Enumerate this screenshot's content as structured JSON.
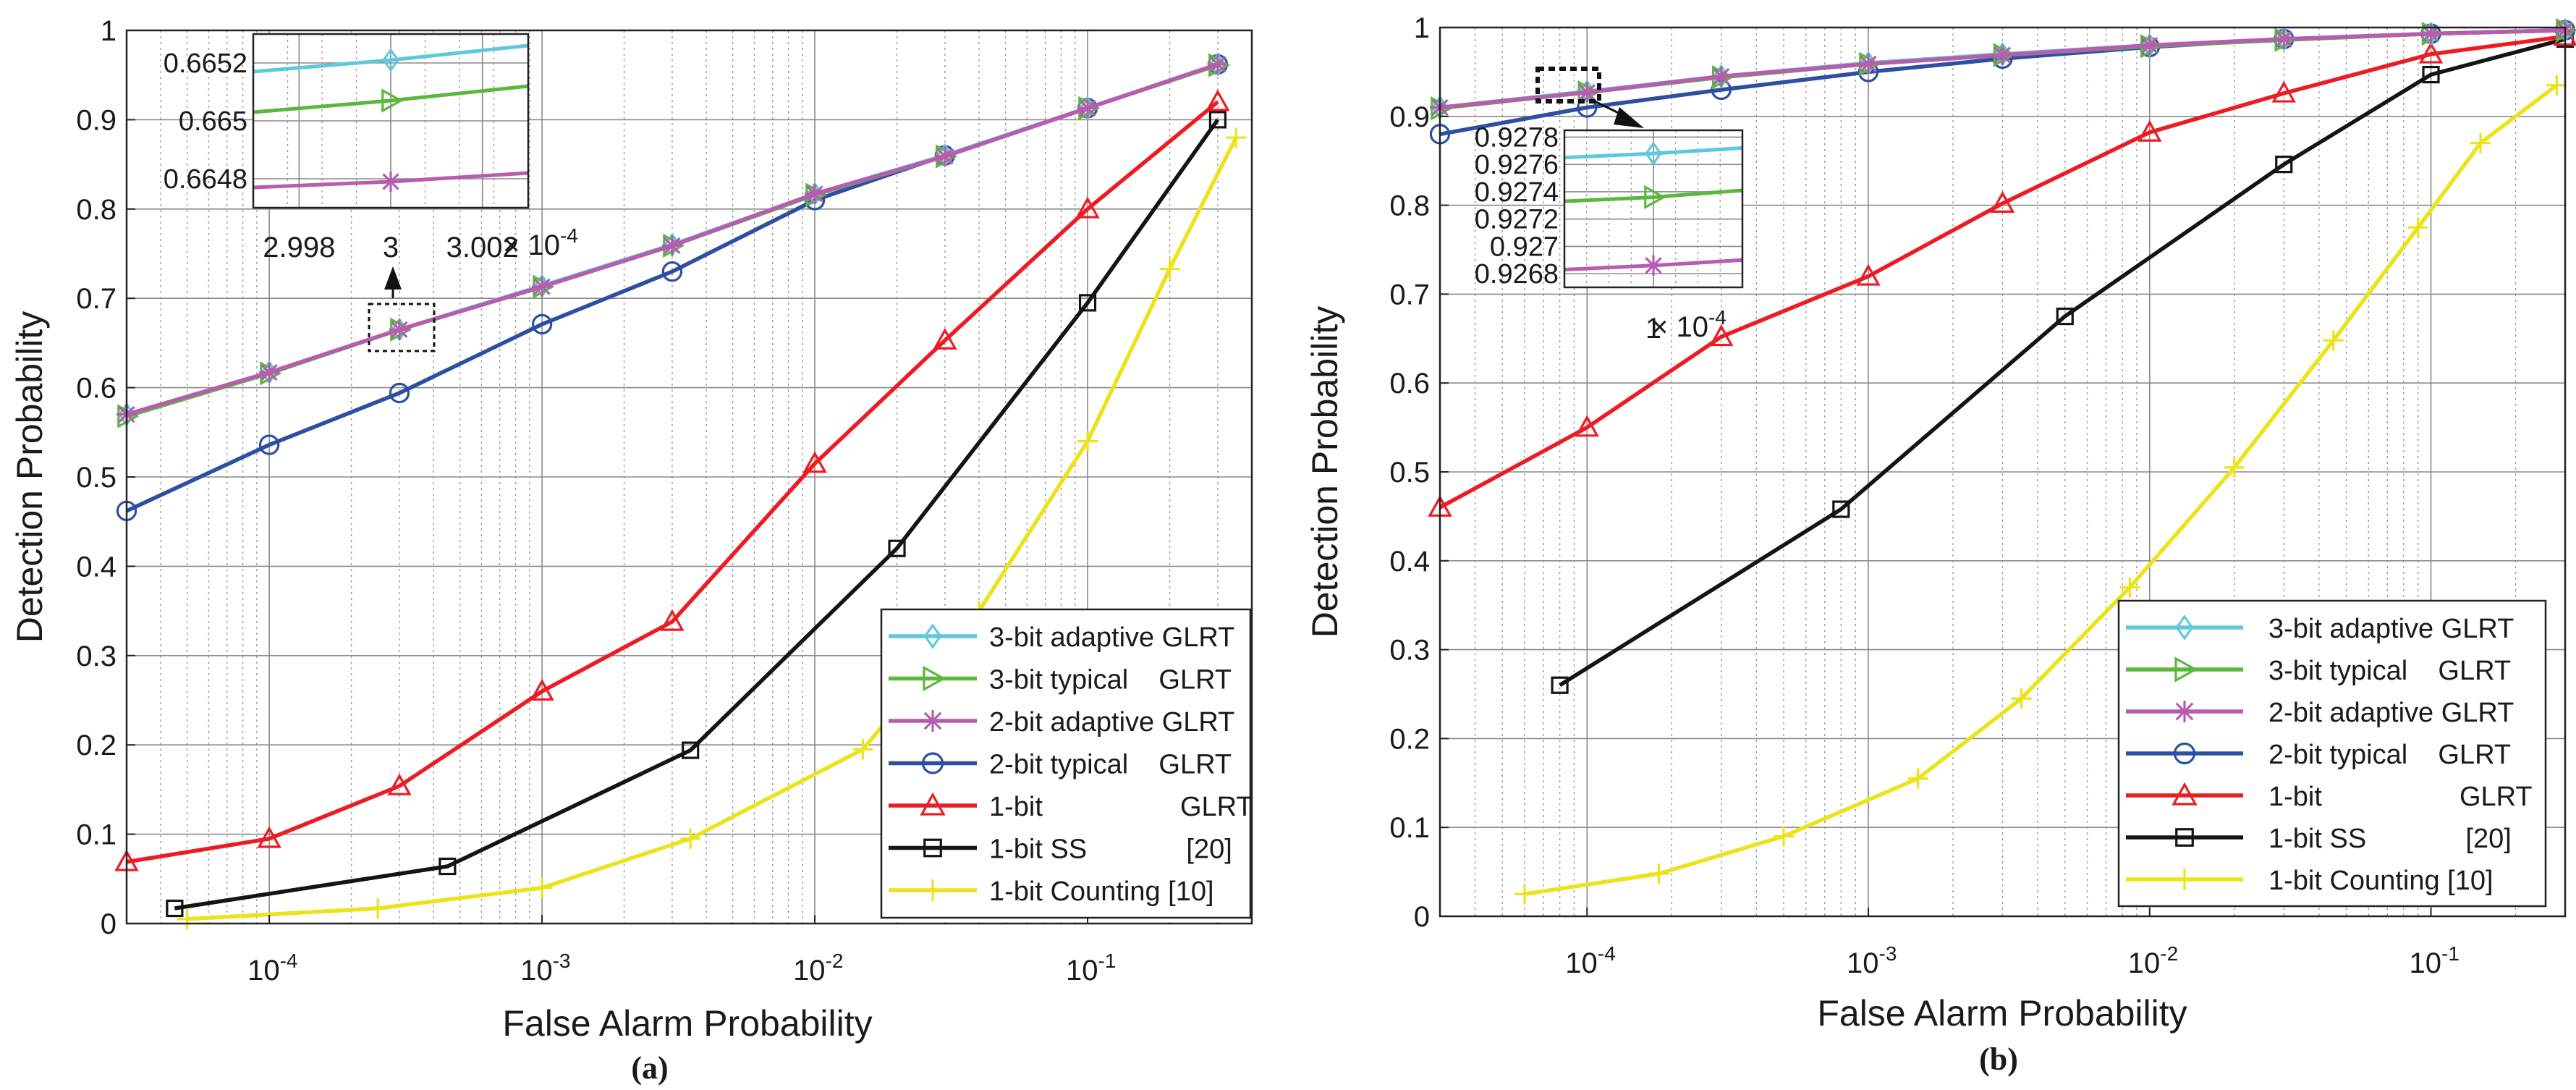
{
  "figure": {
    "series_styles": [
      {
        "color": "#5fc8dc",
        "marker": "diamond"
      },
      {
        "color": "#5ab83c",
        "marker": "triangle-right"
      },
      {
        "color": "#b85cb0",
        "marker": "asterisk"
      },
      {
        "color": "#2d4fa3",
        "marker": "circle"
      },
      {
        "color": "#ec1c24",
        "marker": "triangle-up"
      },
      {
        "color": "#141414",
        "marker": "square"
      },
      {
        "color": "#ebe31c",
        "marker": "plus"
      }
    ]
  },
  "chart_data": [
    {
      "type": "line",
      "panel_label": "(a)",
      "xlabel": "False Alarm Probability",
      "ylabel": "Detection Probability",
      "xscale": "log",
      "xlim": [
        3e-05,
        0.4
      ],
      "ylim": [
        0,
        1
      ],
      "yticks": [
        "0",
        "0.1",
        "0.2",
        "0.3",
        "0.4",
        "0.5",
        "0.6",
        "0.7",
        "0.8",
        "0.9",
        "1"
      ],
      "xticks": [
        {
          "base": "10",
          "exp": "-4"
        },
        {
          "base": "10",
          "exp": "-3"
        },
        {
          "base": "10",
          "exp": "-2"
        },
        {
          "base": "10",
          "exp": "-1"
        }
      ],
      "grid": true,
      "legend": {
        "position": "bottom-right",
        "entries": [
          {
            "label": "3-bit adaptive GLRT"
          },
          {
            "label": "3-bit typical    GLRT"
          },
          {
            "label": "2-bit adaptive GLRT"
          },
          {
            "label": "2-bit typical    GLRT"
          },
          {
            "label": "1-bit                  GLRT"
          },
          {
            "label": "1-bit SS             [20]"
          },
          {
            "label": "1-bit Counting [10]"
          }
        ]
      },
      "series": [
        {
          "name": "3-bit adaptive GLRT",
          "x": [
            3e-05,
            0.0001,
            0.0003,
            0.001,
            0.003,
            0.01,
            0.03,
            0.1,
            0.3
          ],
          "y": [
            0.57,
            0.617,
            0.665,
            0.714,
            0.76,
            0.817,
            0.86,
            0.913,
            0.962
          ]
        },
        {
          "name": "3-bit typical GLRT",
          "x": [
            3e-05,
            0.0001,
            0.0003,
            0.001,
            0.003,
            0.01,
            0.03,
            0.1,
            0.3
          ],
          "y": [
            0.568,
            0.616,
            0.665,
            0.713,
            0.759,
            0.816,
            0.859,
            0.913,
            0.961
          ]
        },
        {
          "name": "2-bit adaptive GLRT",
          "x": [
            3e-05,
            0.0001,
            0.0003,
            0.001,
            0.003,
            0.01,
            0.03,
            0.1,
            0.3
          ],
          "y": [
            0.57,
            0.617,
            0.665,
            0.713,
            0.759,
            0.817,
            0.859,
            0.913,
            0.962
          ]
        },
        {
          "name": "2-bit typical GLRT",
          "x": [
            3e-05,
            0.0001,
            0.0003,
            0.001,
            0.003,
            0.01,
            0.03,
            0.1,
            0.3
          ],
          "y": [
            0.462,
            0.536,
            0.594,
            0.671,
            0.73,
            0.81,
            0.86,
            0.913,
            0.962
          ]
        },
        {
          "name": "1-bit GLRT",
          "x": [
            3e-05,
            0.0001,
            0.0003,
            0.001,
            0.003,
            0.01,
            0.03,
            0.1,
            0.3
          ],
          "y": [
            0.069,
            0.095,
            0.154,
            0.26,
            0.338,
            0.515,
            0.653,
            0.8,
            0.92
          ]
        },
        {
          "name": "1-bit SS [20]",
          "x": [
            4.5e-05,
            0.00045,
            0.0035,
            0.02,
            0.1,
            0.3
          ],
          "y": [
            0.017,
            0.064,
            0.194,
            0.42,
            0.695,
            0.9
          ]
        },
        {
          "name": "1-bit Counting [10]",
          "x": [
            5e-05,
            0.00025,
            0.001,
            0.0035,
            0.015,
            0.04,
            0.1,
            0.2,
            0.35
          ],
          "y": [
            0.005,
            0.017,
            0.04,
            0.095,
            0.195,
            0.35,
            0.54,
            0.733,
            0.88
          ]
        }
      ],
      "inset": {
        "xlim": [
          2.997,
          3.003
        ],
        "ylim": [
          0.6647,
          0.6653
        ],
        "xticks": [
          "2.998",
          "3",
          "3.002"
        ],
        "yticks": [
          "0.6648",
          "0.665",
          "0.6652"
        ],
        "x_multiplier": "× 10",
        "x_multiplier_exp": "-4",
        "series": [
          {
            "name": "3-bit adaptive GLRT",
            "x": [
              2.997,
              3.0,
              3.003
            ],
            "y": [
              0.66517,
              0.66521,
              0.66526
            ]
          },
          {
            "name": "3-bit typical GLRT",
            "x": [
              2.997,
              3.0,
              3.003
            ],
            "y": [
              0.66503,
              0.66507,
              0.66512
            ]
          },
          {
            "name": "2-bit adaptive GLRT",
            "x": [
              2.997,
              3.0,
              3.003
            ],
            "y": [
              0.66477,
              0.66479,
              0.66482
            ]
          }
        ]
      }
    },
    {
      "type": "line",
      "panel_label": "(b)",
      "xlabel": "False Alarm Probability",
      "ylabel": "Detection Probability",
      "xscale": "log",
      "xlim": [
        3e-05,
        0.3
      ],
      "ylim": [
        0,
        1
      ],
      "yticks": [
        "0",
        "0.1",
        "0.2",
        "0.3",
        "0.4",
        "0.5",
        "0.6",
        "0.7",
        "0.8",
        "0.9",
        "1"
      ],
      "xticks": [
        {
          "base": "10",
          "exp": "-4"
        },
        {
          "base": "10",
          "exp": "-3"
        },
        {
          "base": "10",
          "exp": "-2"
        },
        {
          "base": "10",
          "exp": "-1"
        }
      ],
      "grid": true,
      "legend": {
        "position": "bottom-right",
        "entries": [
          {
            "label": "3-bit adaptive GLRT"
          },
          {
            "label": "3-bit typical    GLRT"
          },
          {
            "label": "2-bit adaptive GLRT"
          },
          {
            "label": "2-bit typical    GLRT"
          },
          {
            "label": "1-bit                  GLRT"
          },
          {
            "label": "1-bit SS             [20]"
          },
          {
            "label": "1-bit Counting [10]"
          }
        ]
      },
      "series": [
        {
          "name": "3-bit adaptive GLRT",
          "x": [
            3e-05,
            0.0001,
            0.0003,
            0.001,
            0.003,
            0.01,
            0.03,
            0.1,
            0.3
          ],
          "y": [
            0.91,
            0.928,
            0.945,
            0.96,
            0.97,
            0.98,
            0.987,
            0.993,
            0.997
          ]
        },
        {
          "name": "3-bit typical GLRT",
          "x": [
            3e-05,
            0.0001,
            0.0003,
            0.001,
            0.003,
            0.01,
            0.03,
            0.1,
            0.3
          ],
          "y": [
            0.909,
            0.927,
            0.944,
            0.959,
            0.969,
            0.979,
            0.986,
            0.993,
            0.997
          ]
        },
        {
          "name": "2-bit adaptive GLRT",
          "x": [
            3e-05,
            0.0001,
            0.0003,
            0.001,
            0.003,
            0.01,
            0.03,
            0.1,
            0.3
          ],
          "y": [
            0.91,
            0.927,
            0.945,
            0.959,
            0.969,
            0.98,
            0.987,
            0.993,
            0.997
          ]
        },
        {
          "name": "2-bit typical GLRT",
          "x": [
            3e-05,
            0.0001,
            0.0003,
            0.001,
            0.003,
            0.01,
            0.03,
            0.1,
            0.3
          ],
          "y": [
            0.88,
            0.91,
            0.93,
            0.95,
            0.965,
            0.978,
            0.987,
            0.993,
            0.997
          ]
        },
        {
          "name": "1-bit GLRT",
          "x": [
            3e-05,
            0.0001,
            0.0003,
            0.001,
            0.003,
            0.01,
            0.03,
            0.1,
            0.3
          ],
          "y": [
            0.46,
            0.55,
            0.652,
            0.72,
            0.802,
            0.882,
            0.926,
            0.97,
            0.99
          ]
        },
        {
          "name": "1-bit SS [20]",
          "x": [
            8e-05,
            0.0008,
            0.005,
            0.03,
            0.1,
            0.3
          ],
          "y": [
            0.26,
            0.458,
            0.675,
            0.846,
            0.947,
            0.987
          ]
        },
        {
          "name": "1-bit Counting [10]",
          "x": [
            6e-05,
            0.00018,
            0.0005,
            0.0015,
            0.0035,
            0.0085,
            0.02,
            0.045,
            0.09,
            0.15,
            0.28
          ],
          "y": [
            0.025,
            0.048,
            0.09,
            0.155,
            0.245,
            0.37,
            0.505,
            0.648,
            0.775,
            0.87,
            0.935
          ]
        }
      ],
      "inset": {
        "xlim": [
          0.9994,
          1.0006
        ],
        "ylim": [
          0.9267,
          0.92785
        ],
        "xticks": [
          "1"
        ],
        "yticks": [
          "0.9268",
          "0.927",
          "0.9272",
          "0.9274",
          "0.9276",
          "0.9278"
        ],
        "x_multiplier": "× 10",
        "x_multiplier_exp": "-4",
        "series": [
          {
            "name": "3-bit adaptive GLRT",
            "x": [
              0.9994,
              1.0,
              1.0006
            ],
            "y": [
              0.92765,
              0.92768,
              0.92772
            ]
          },
          {
            "name": "3-bit typical GLRT",
            "x": [
              0.9994,
              1.0,
              1.0006
            ],
            "y": [
              0.92733,
              0.92736,
              0.92741
            ]
          },
          {
            "name": "2-bit adaptive GLRT",
            "x": [
              0.9994,
              1.0,
              1.0006
            ],
            "y": [
              0.92683,
              0.92686,
              0.9269
            ]
          }
        ]
      }
    }
  ]
}
